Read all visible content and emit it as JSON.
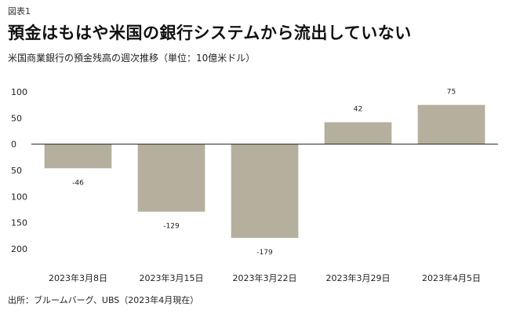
{
  "header": {
    "figure_label": "図表1",
    "title": "預金はもはや米国の銀行システムから流出していない",
    "subtitle": "米国商業銀行の預金残高の週次推移（単位：10億米ドル）"
  },
  "footer": {
    "source": "出所：ブルームバーグ、UBS（2023年4月現在）"
  },
  "colors": {
    "bar": "#b5b09d",
    "axis": "#222222",
    "text": "#222222"
  },
  "chart_data": {
    "type": "bar",
    "title": "",
    "xlabel": "",
    "ylabel": "",
    "categories": [
      "2023年3月8日",
      "2023年3月15日",
      "2023年3月22日",
      "2023年3月29日",
      "2023年4月5日"
    ],
    "values": [
      -46,
      -129,
      -179,
      42,
      75
    ],
    "data_labels": [
      "-46",
      "-129",
      "-179",
      "42",
      "75"
    ],
    "ylim": [
      -200,
      100
    ],
    "yticks": [
      100,
      50,
      0,
      -50,
      -100,
      -150,
      -200
    ],
    "ytick_labels": [
      "100",
      "50",
      "0",
      "50",
      "100",
      "150",
      "200"
    ],
    "grid": false,
    "legend": "none"
  }
}
